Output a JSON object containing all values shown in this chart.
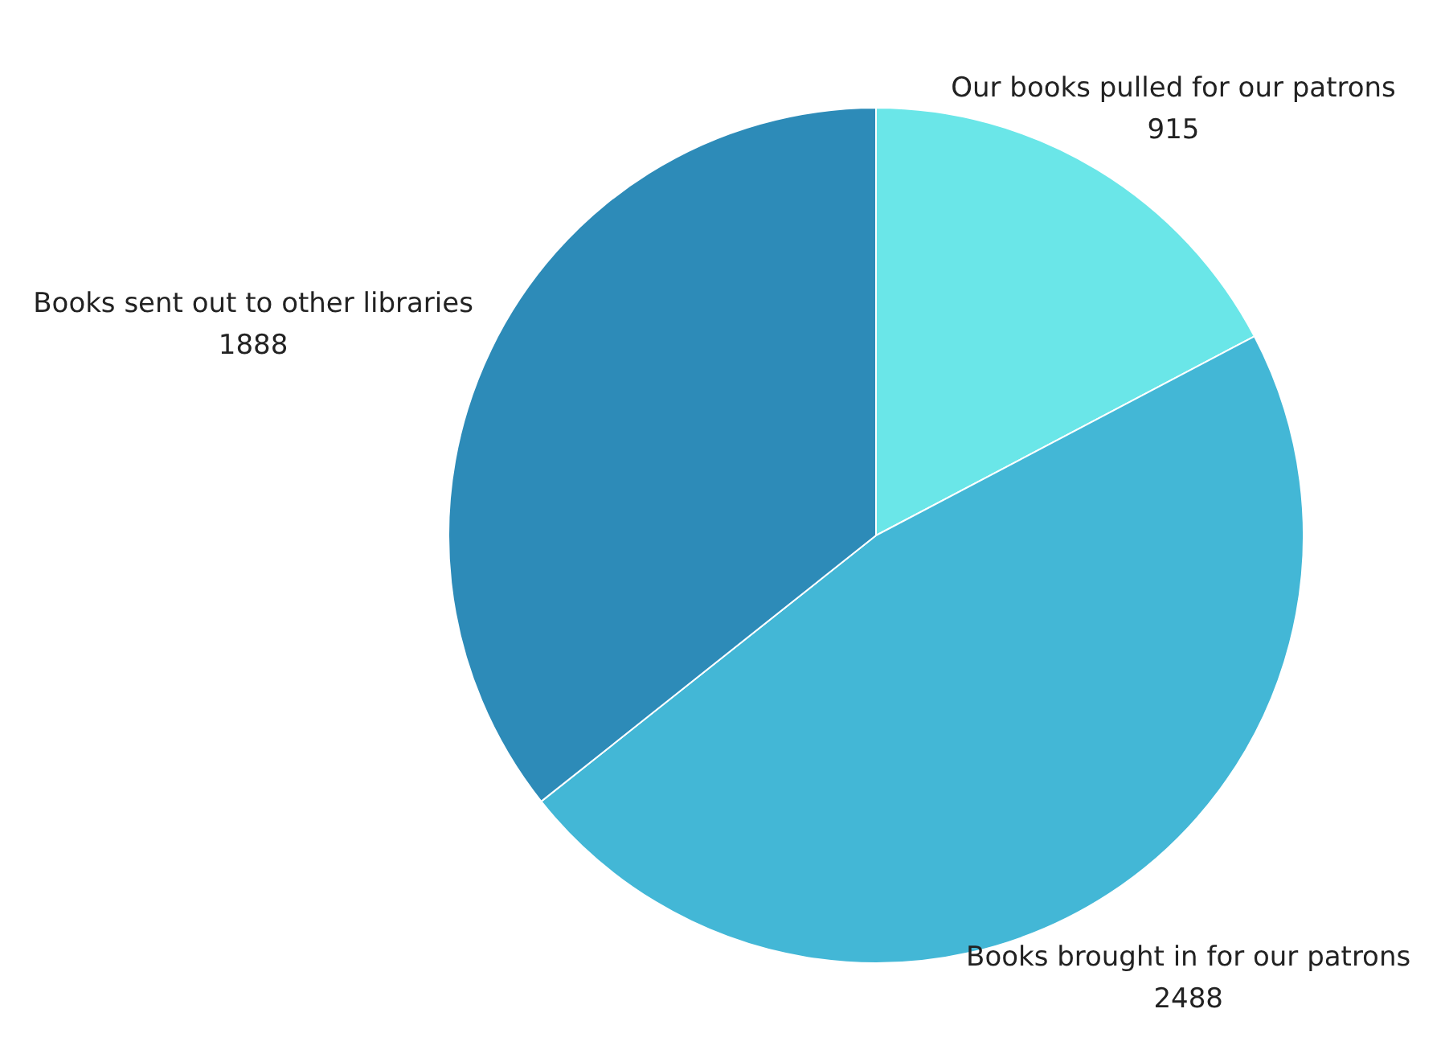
{
  "chart_data": {
    "type": "pie",
    "categories": [
      "Our books pulled for our patrons",
      "Books brought in for our patrons",
      "Books sent out to other libraries"
    ],
    "values": [
      915,
      2488,
      1888
    ],
    "colors": [
      "#6ae6e8",
      "#43b7d6",
      "#2d8bb8"
    ],
    "data_labels": true
  }
}
